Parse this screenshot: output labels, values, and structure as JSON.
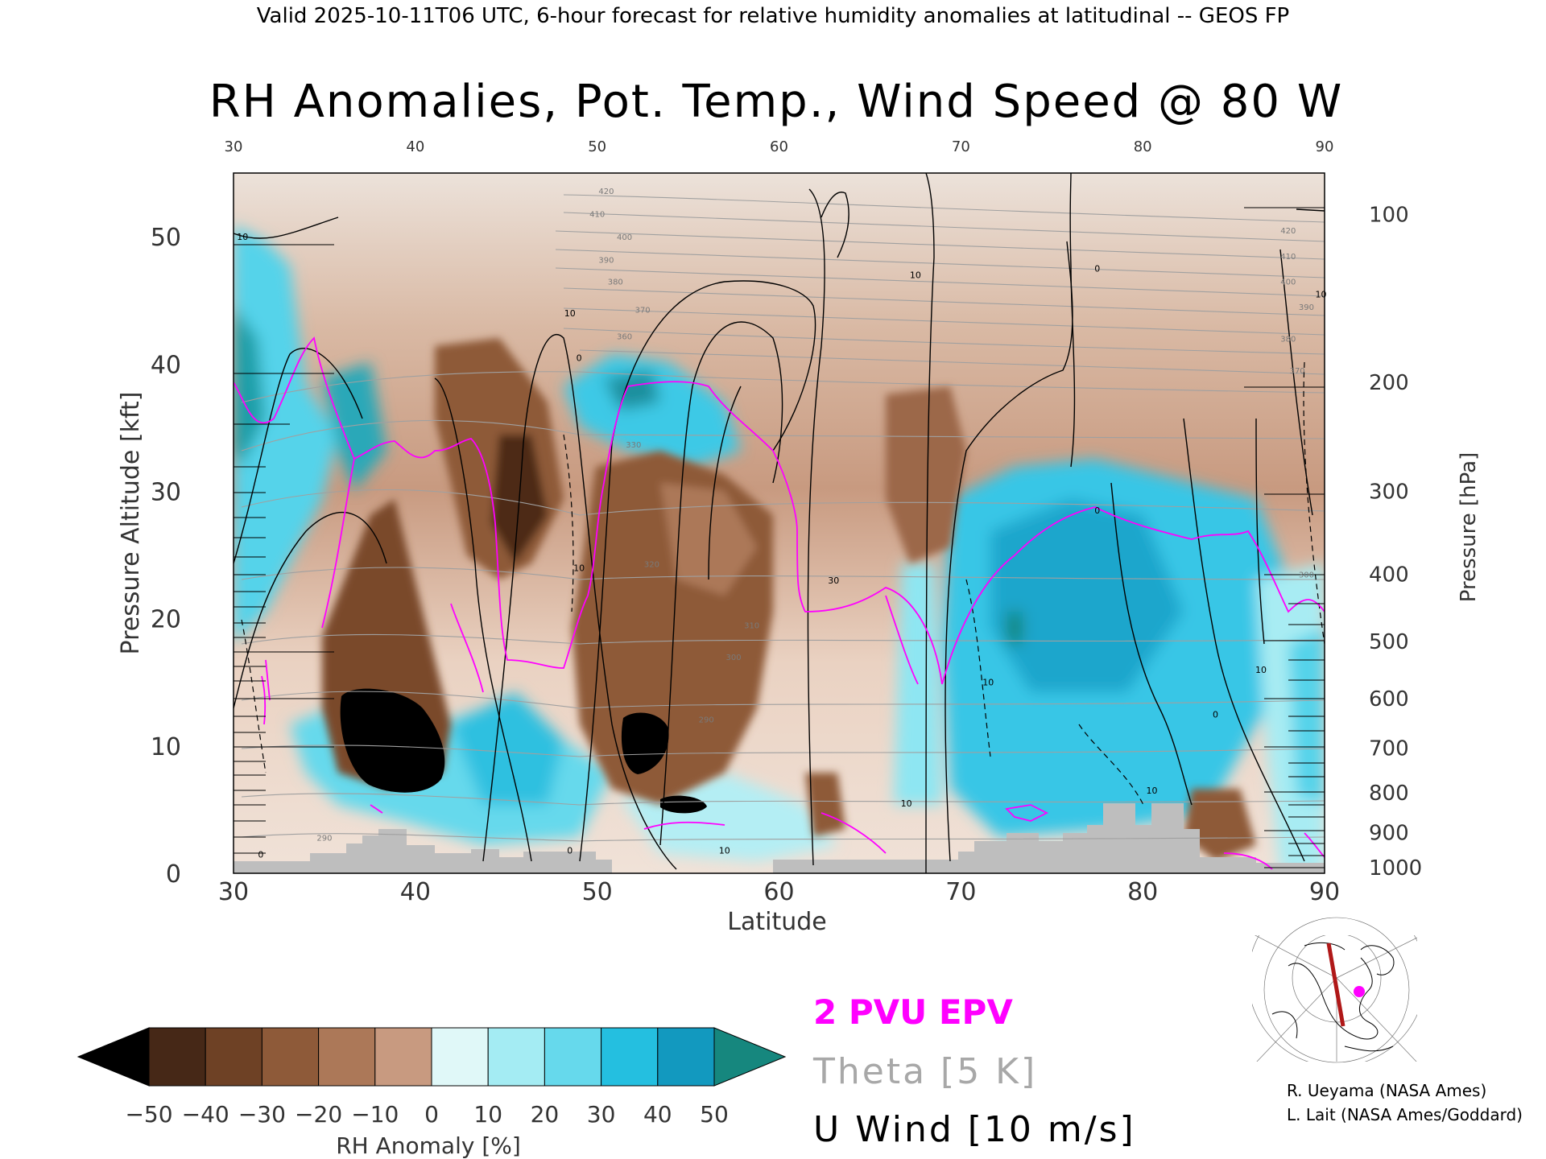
{
  "header": {
    "valid_line": "Valid 2025-10-11T06 UTC, 6-hour forecast for relative humidity anomalies at latitudinal -- GEOS FP"
  },
  "chart_data": {
    "type": "heatmap",
    "title": "RH Anomalies, Pot. Temp., Wind Speed @ 80 W",
    "xlabel": "Latitude",
    "ylabel_left": "Pressure Altitude [kft]",
    "ylabel_right": "Pressure [hPa]",
    "xlim": [
      30,
      90
    ],
    "ylim_kft": [
      0,
      55
    ],
    "x_ticks": [
      "30",
      "40",
      "50",
      "60",
      "70",
      "80",
      "90"
    ],
    "x_tick_values": [
      30,
      40,
      50,
      60,
      70,
      80,
      90
    ],
    "y_ticks_left": [
      "0",
      "10",
      "20",
      "30",
      "40",
      "50"
    ],
    "y_tick_values_left": [
      0,
      10,
      20,
      30,
      40,
      50
    ],
    "y_ticks_right": [
      "100",
      "200",
      "300",
      "400",
      "500",
      "600",
      "700",
      "800",
      "900",
      "1000"
    ],
    "y_tick_values_right": [
      100,
      200,
      300,
      400,
      500,
      600,
      700,
      800,
      900,
      1000
    ],
    "theta_labels": [
      {
        "text": "420",
        "lat": 50.5,
        "alt": 53.6
      },
      {
        "text": "410",
        "lat": 50.0,
        "alt": 51.8
      },
      {
        "text": "400",
        "lat": 51.5,
        "alt": 50.0
      },
      {
        "text": "390",
        "lat": 50.5,
        "alt": 48.2
      },
      {
        "text": "380",
        "lat": 51.0,
        "alt": 46.5
      },
      {
        "text": "370",
        "lat": 52.5,
        "alt": 44.3
      },
      {
        "text": "360",
        "lat": 51.5,
        "alt": 42.2
      },
      {
        "text": "330",
        "lat": 52.0,
        "alt": 33.7
      },
      {
        "text": "320",
        "lat": 53.0,
        "alt": 24.3
      },
      {
        "text": "310",
        "lat": 58.5,
        "alt": 19.5
      },
      {
        "text": "300",
        "lat": 57.5,
        "alt": 17.0
      },
      {
        "text": "290",
        "lat": 56.0,
        "alt": 12.1
      },
      {
        "text": "420",
        "lat": 88.0,
        "alt": 50.5
      },
      {
        "text": "410",
        "lat": 88.0,
        "alt": 48.5
      },
      {
        "text": "400",
        "lat": 88.0,
        "alt": 46.5
      },
      {
        "text": "390",
        "lat": 89.0,
        "alt": 44.5
      },
      {
        "text": "380",
        "lat": 88.0,
        "alt": 42.0
      },
      {
        "text": "370",
        "lat": 88.5,
        "alt": 39.5
      },
      {
        "text": "300",
        "lat": 89.0,
        "alt": 23.5
      },
      {
        "text": "290",
        "lat": 35.0,
        "alt": 2.8
      }
    ],
    "wind_labels": [
      {
        "text": "10",
        "lat": 30.5,
        "alt": 50.0
      },
      {
        "text": "10",
        "lat": 48.5,
        "alt": 44.0
      },
      {
        "text": "0",
        "lat": 49.0,
        "alt": 40.5
      },
      {
        "text": "10",
        "lat": 67.5,
        "alt": 47.0
      },
      {
        "text": "0",
        "lat": 77.5,
        "alt": 47.5
      },
      {
        "text": "10",
        "lat": 89.8,
        "alt": 45.5
      },
      {
        "text": "30",
        "lat": 63.0,
        "alt": 23.0
      },
      {
        "text": "10",
        "lat": 49.0,
        "alt": 24.0
      },
      {
        "text": "0",
        "lat": 77.5,
        "alt": 28.5
      },
      {
        "text": "10",
        "lat": 71.5,
        "alt": 15.0
      },
      {
        "text": "10",
        "lat": 86.5,
        "alt": 16.0
      },
      {
        "text": "0",
        "lat": 84.0,
        "alt": 12.5
      },
      {
        "text": "10",
        "lat": 80.5,
        "alt": 6.5
      },
      {
        "text": "10",
        "lat": 67.0,
        "alt": 5.5
      },
      {
        "text": "10",
        "lat": 57.0,
        "alt": 1.8
      },
      {
        "text": "0",
        "lat": 48.5,
        "alt": 1.8
      },
      {
        "text": "0",
        "lat": 31.5,
        "alt": 1.5
      }
    ],
    "legend": {
      "epv": "2 PVU EPV",
      "theta": "Theta [5 K]",
      "uwind": "U Wind [10 m/s]"
    },
    "colorbar": {
      "label": "RH Anomaly [%]",
      "tick_labels": [
        "−50",
        "−40",
        "−30",
        "−20",
        "−10",
        "0",
        "10",
        "20",
        "30",
        "40",
        "50"
      ],
      "colors": [
        "#462817",
        "#6e4125",
        "#8e5a39",
        "#ac7858",
        "#c89a80",
        "#ebd8ca",
        "#e0f8f8",
        "#a4ecf3",
        "#66d9ec",
        "#24bfe0",
        "#1299bf"
      ],
      "under_color": "#000000",
      "over_color": "#16877e"
    },
    "colors": {
      "epv": "#ff00ff",
      "theta": "#a0a0a0",
      "wind": "#000000",
      "terrain": "#bebebe"
    }
  },
  "credits": {
    "line1": "R. Ueyama (NASA Ames)",
    "line2": "L. Lait (NASA Ames/Goddard)"
  }
}
